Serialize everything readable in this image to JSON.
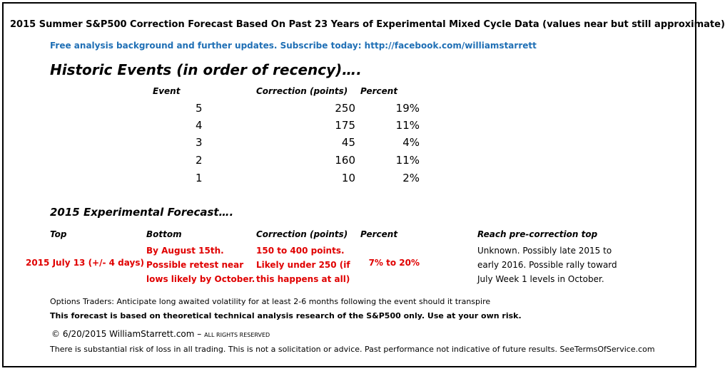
{
  "title": "2015 Summer S&P500 Correction Forecast Based On Past 23 Years of Experimental Mixed Cycle Data (values near but still approximate)",
  "subtitle": "Free analysis background and further updates.  Subscribe today:  http://facebook.com/williamstarrett",
  "historic": {
    "heading": "Historic Events (in order of recency)….",
    "headers": {
      "event": "Event",
      "correction": "Correction (points)",
      "percent": "Percent"
    },
    "rows": [
      {
        "event": "5",
        "correction": "250",
        "percent": "19%"
      },
      {
        "event": "4",
        "correction": "175",
        "percent": "11%"
      },
      {
        "event": "3",
        "correction": "45",
        "percent": "4%"
      },
      {
        "event": "2",
        "correction": "160",
        "percent": "11%"
      },
      {
        "event": "1",
        "correction": "10",
        "percent": "2%"
      }
    ]
  },
  "forecast": {
    "heading": "2015 Experimental Forecast….",
    "headers": {
      "top": "Top",
      "bottom": "Bottom",
      "correction": "Correction (points)",
      "percent": "Percent",
      "reach": "Reach pre-correction top"
    },
    "top_value": "2015 July 13   (+/- 4 days)",
    "bottom_lines": [
      "By August 15th.",
      "Possible retest near",
      "lows likely by October."
    ],
    "correction_lines": [
      "150 to 400 points.",
      "Likely under 250 (if",
      "this happens at all)"
    ],
    "percent_value": "7% to 20%",
    "reach_lines": [
      "Unknown.  Possibly late 2015 to",
      "early 2016.  Possible rally toward",
      "July Week 1 levels in October."
    ]
  },
  "notes": {
    "options": "Options Traders:  Anticipate long awaited volatility for at least 2-6 months following the event should it transpire",
    "disclaimer": "This forecast is based on theoretical technical analysis research of the S&P500 only.  Use at your own risk.",
    "copyright_main": "© 6/20/2015 WilliamStarrett.com –",
    "copyright_rights": "ALL RIGHTS RESERVED",
    "risk": "There is substantial risk of loss in all trading.  This is not a solicitation or advice.  Past performance not indicative of future results.  SeeTermsOfService.com"
  },
  "colors": {
    "link_blue": "#1f6fb5",
    "forecast_red": "#e00000",
    "border": "#000000"
  }
}
